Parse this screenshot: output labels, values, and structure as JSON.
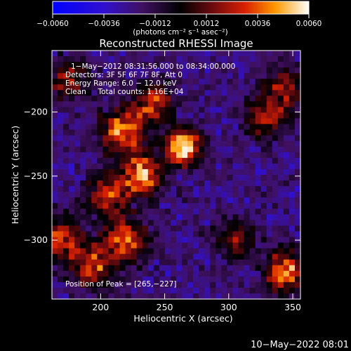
{
  "chart_data": {
    "type": "heatmap",
    "title": "Reconstructed RHESSI Image",
    "xlabel": "Heliocentric X (arcsec)",
    "ylabel": "Heliocentric Y (arcsec)",
    "xlim": [
      162,
      356
    ],
    "ylim": [
      -346,
      -152
    ],
    "x_ticks": [
      200,
      250,
      300,
      350
    ],
    "y_ticks": [
      -200,
      -250,
      -300
    ],
    "x_tick_labels": [
      "200",
      "250",
      "300",
      "350"
    ],
    "y_tick_labels": [
      "−200",
      "−250",
      "−300"
    ],
    "colorbar": {
      "range": [
        -0.006,
        0.006
      ],
      "ticks": [
        -0.006,
        -0.0036,
        -0.0012,
        0.0012,
        0.0036,
        0.006
      ],
      "tick_labels": [
        "−0.0060",
        "−0.0036",
        "−0.0012",
        "0.0012",
        "0.0036",
        "0.0060"
      ],
      "units": "(photons cm⁻² s⁻¹ asec⁻²)"
    },
    "sources": [
      {
        "x": 265,
        "y": -227,
        "value": 0.006
      },
      {
        "x": 232,
        "y": -248,
        "value": 0.0044
      },
      {
        "x": 215,
        "y": -215,
        "value": 0.004
      },
      {
        "x": 205,
        "y": -265,
        "value": 0.0032
      },
      {
        "x": 220,
        "y": -300,
        "value": 0.0034
      },
      {
        "x": 195,
        "y": -320,
        "value": 0.0026
      },
      {
        "x": 240,
        "y": -195,
        "value": 0.0028
      },
      {
        "x": 175,
        "y": -175,
        "value": 0.0018
      },
      {
        "x": 170,
        "y": -300,
        "value": 0.003
      },
      {
        "x": 345,
        "y": -325,
        "value": 0.0042
      },
      {
        "x": 330,
        "y": -205,
        "value": 0.0022
      },
      {
        "x": 345,
        "y": -180,
        "value": 0.0018
      },
      {
        "x": 305,
        "y": -300,
        "value": 0.0012
      }
    ],
    "annotations": {
      "time": "1−May−2012 08:31:56.000 to 08:34:00.000",
      "detectors": "Detectors: 3F 5F 6F 7F 8F, Att 0",
      "energy": "Energy Range: 6.0 − 12.0 keV",
      "method": "Clean     Total counts: 1.16E+04",
      "peak": "Position of Peak = [265,−227]"
    },
    "footer_date": "10−May−2022 08:01"
  }
}
